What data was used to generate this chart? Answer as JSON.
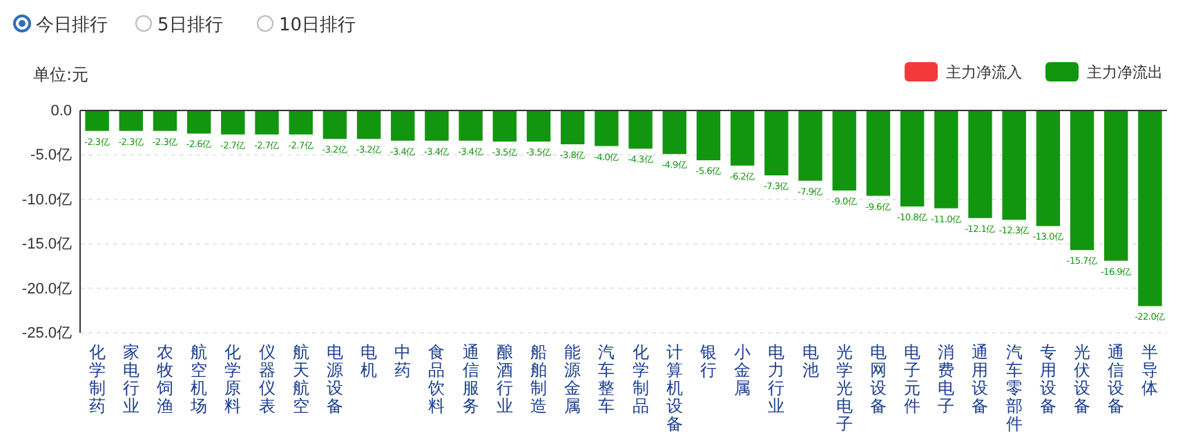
{
  "chart_data": {
    "type": "bar",
    "ylabel": "单位:元",
    "annotations": [
      "今日排行",
      "5日排行",
      "10日排行"
    ],
    "categories": [
      "化学制药",
      "家电行业",
      "农牧饲渔",
      "航空机场",
      "化学原料",
      "仪器仪表",
      "航天航空",
      "电源设备",
      "电机",
      "中药",
      "食品饮料",
      "通信服务",
      "酿酒行业",
      "船舶制造",
      "能源金属",
      "汽车整车",
      "化学制品",
      "计算机设备",
      "银行",
      "小金属",
      "电力行业",
      "电池",
      "光学光电子",
      "电网设备",
      "电子元件",
      "消费电子",
      "通用设备",
      "汽车零部件",
      "专用设备",
      "光伏设备",
      "通信设备",
      "半导体"
    ],
    "series": [
      {
        "name": "主力净流入",
        "color": "#f23a3a",
        "values": [
          null,
          null,
          null,
          null,
          null,
          null,
          null,
          null,
          null,
          null,
          null,
          null,
          null,
          null,
          null,
          null,
          null,
          null,
          null,
          null,
          null,
          null,
          null,
          null,
          null,
          null,
          null,
          null,
          null,
          null,
          null,
          null
        ]
      },
      {
        "name": "主力净流出",
        "color": "#13960f",
        "values": [
          -2.3,
          -2.3,
          -2.3,
          -2.6,
          -2.7,
          -2.7,
          -2.7,
          -3.2,
          -3.2,
          -3.4,
          -3.4,
          -3.4,
          -3.5,
          -3.5,
          -3.8,
          -4.0,
          -4.3,
          -4.9,
          -5.6,
          -6.2,
          -7.3,
          -7.9,
          -9.0,
          -9.6,
          -10.8,
          -11.0,
          -12.1,
          -12.3,
          -13.0,
          -15.7,
          -16.9,
          -22.0
        ],
        "value_labels": [
          "-2.3亿",
          "-2.3亿",
          "-2.3亿",
          "-2.6亿",
          "-2.7亿",
          "-2.7亿",
          "-2.7亿",
          "-3.2亿",
          "-3.2亿",
          "-3.4亿",
          "-3.4亿",
          "-3.4亿",
          "-3.5亿",
          "-3.5亿",
          "-3.8亿",
          "-4.0亿",
          "-4.3亿",
          "-4.9亿",
          "-5.6亿",
          "-6.2亿",
          "-7.3亿",
          "-7.9亿",
          "-9.0亿",
          "-9.6亿",
          "-10.8亿",
          "-11.0亿",
          "-12.1亿",
          "-12.3亿",
          "-13.0亿",
          "-15.7亿",
          "-16.9亿",
          "-22.0亿"
        ]
      }
    ],
    "ylim": [
      -25,
      0
    ],
    "yticks": [
      {
        "value": 0,
        "label": "0.0"
      },
      {
        "value": -5,
        "label": "-5.0亿"
      },
      {
        "value": -10,
        "label": "-10.0亿"
      },
      {
        "value": -15,
        "label": "-15.0亿"
      },
      {
        "value": -20,
        "label": "-20.0亿"
      },
      {
        "value": -25,
        "label": "-25.0亿"
      }
    ],
    "grid": "y",
    "legend": "top right"
  }
}
